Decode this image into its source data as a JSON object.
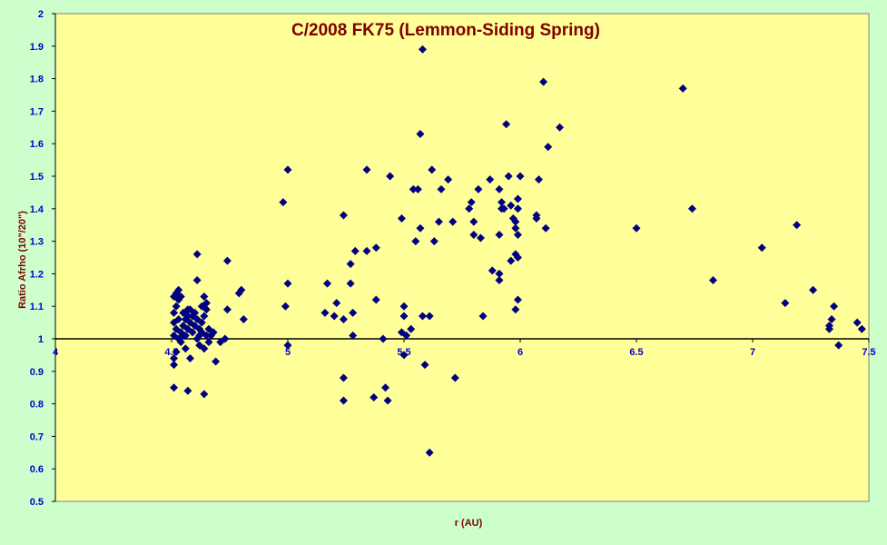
{
  "colors": {
    "chart_area_bg": "#ccffcc",
    "plot_area_bg": "#ffff99",
    "title_color": "#800000",
    "tick_color": "#0000cc",
    "marker_color": "#000080"
  },
  "chart_data": {
    "type": "scatter",
    "title": "C/2008 FK75 (Lemmon-Siding Spring)",
    "xlabel": "r (AU)",
    "ylabel": "Ratio Afrho  (10\"/20\")",
    "xlim": [
      4,
      7.5
    ],
    "ylim": [
      0.5,
      2
    ],
    "x_ticks": [
      "4",
      "4.5",
      "5",
      "5.5",
      "6",
      "6.5",
      "7",
      "7.5"
    ],
    "y_ticks": [
      "0.5",
      "0.6",
      "0.7",
      "0.8",
      "0.9",
      "1",
      "1.1",
      "1.2",
      "1.3",
      "1.4",
      "1.5",
      "1.6",
      "1.7",
      "1.8",
      "1.9",
      "2"
    ],
    "reference_line_y": 1,
    "x_axis_crosses_y": 1,
    "grid": false,
    "legend": "none",
    "marker": "diamond",
    "series": [
      {
        "points": [
          [
            4.51,
            0.85
          ],
          [
            4.57,
            0.84
          ],
          [
            4.64,
            0.83
          ],
          [
            4.51,
            0.92
          ],
          [
            4.51,
            0.94
          ],
          [
            4.52,
            0.96
          ],
          [
            4.56,
            0.97
          ],
          [
            4.58,
            0.94
          ],
          [
            4.62,
            0.98
          ],
          [
            4.64,
            0.97
          ],
          [
            4.69,
            0.93
          ],
          [
            4.71,
            0.99
          ],
          [
            4.73,
            1.0
          ],
          [
            4.51,
            1.01
          ],
          [
            4.52,
            1.03
          ],
          [
            4.51,
            1.05
          ],
          [
            4.53,
            1.06
          ],
          [
            4.51,
            1.08
          ],
          [
            4.52,
            1.1
          ],
          [
            4.53,
            1.12
          ],
          [
            4.51,
            1.13
          ],
          [
            4.52,
            1.14
          ],
          [
            4.53,
            1.15
          ],
          [
            4.54,
            1.13
          ],
          [
            4.53,
            1.0
          ],
          [
            4.54,
            1.02
          ],
          [
            4.55,
            1.04
          ],
          [
            4.56,
            1.06
          ],
          [
            4.55,
            1.08
          ],
          [
            4.56,
            1.01
          ],
          [
            4.57,
            1.03
          ],
          [
            4.58,
            1.05
          ],
          [
            4.57,
            1.07
          ],
          [
            4.58,
            1.09
          ],
          [
            4.59,
            1.02
          ],
          [
            4.6,
            1.04
          ],
          [
            4.61,
            1.06
          ],
          [
            4.6,
            1.08
          ],
          [
            4.61,
            1.0
          ],
          [
            4.62,
            1.03
          ],
          [
            4.63,
            1.05
          ],
          [
            4.64,
            1.07
          ],
          [
            4.63,
            1.02
          ],
          [
            4.65,
            1.01
          ],
          [
            4.66,
            1.03
          ],
          [
            4.67,
            1.01
          ],
          [
            4.68,
            1.02
          ],
          [
            4.65,
            1.09
          ],
          [
            4.65,
            1.11
          ],
          [
            4.64,
            1.13
          ],
          [
            4.63,
            1.1
          ],
          [
            4.61,
            1.18
          ],
          [
            4.61,
            1.26
          ],
          [
            4.74,
            1.24
          ],
          [
            4.74,
            1.09
          ],
          [
            4.79,
            1.14
          ],
          [
            4.8,
            1.15
          ],
          [
            4.81,
            1.06
          ],
          [
            4.54,
            0.99
          ],
          [
            4.55,
            1.01
          ],
          [
            4.57,
            1.09
          ],
          [
            4.59,
            1.07
          ],
          [
            4.62,
            1.01
          ],
          [
            4.66,
            0.99
          ],
          [
            4.98,
            1.42
          ],
          [
            5.0,
            1.52
          ],
          [
            4.99,
            1.1
          ],
          [
            5.0,
            1.17
          ],
          [
            5.0,
            0.98
          ],
          [
            5.16,
            1.08
          ],
          [
            5.17,
            1.17
          ],
          [
            5.2,
            1.07
          ],
          [
            5.21,
            1.11
          ],
          [
            5.24,
            1.38
          ],
          [
            5.24,
            1.06
          ],
          [
            5.27,
            1.23
          ],
          [
            5.27,
            1.17
          ],
          [
            5.28,
            1.08
          ],
          [
            5.28,
            1.01
          ],
          [
            5.29,
            1.27
          ],
          [
            5.24,
            0.88
          ],
          [
            5.24,
            0.81
          ],
          [
            5.34,
            1.52
          ],
          [
            5.34,
            1.27
          ],
          [
            5.38,
            1.28
          ],
          [
            5.38,
            1.12
          ],
          [
            5.37,
            0.82
          ],
          [
            5.41,
            1.0
          ],
          [
            5.42,
            0.85
          ],
          [
            5.43,
            0.81
          ],
          [
            5.44,
            1.5
          ],
          [
            5.49,
            1.37
          ],
          [
            5.5,
            1.1
          ],
          [
            5.5,
            1.07
          ],
          [
            5.49,
            1.02
          ],
          [
            5.51,
            1.01
          ],
          [
            5.5,
            0.95
          ],
          [
            5.53,
            1.03
          ],
          [
            5.54,
            1.46
          ],
          [
            5.55,
            1.3
          ],
          [
            5.56,
            1.46
          ],
          [
            5.57,
            1.34
          ],
          [
            5.57,
            1.63
          ],
          [
            5.58,
            1.89
          ],
          [
            5.58,
            1.07
          ],
          [
            5.59,
            0.92
          ],
          [
            5.61,
            1.07
          ],
          [
            5.61,
            0.65
          ],
          [
            5.62,
            1.52
          ],
          [
            5.63,
            1.3
          ],
          [
            5.65,
            1.36
          ],
          [
            5.66,
            1.46
          ],
          [
            5.69,
            1.49
          ],
          [
            5.71,
            1.36
          ],
          [
            5.72,
            0.88
          ],
          [
            5.78,
            1.4
          ],
          [
            5.79,
            1.42
          ],
          [
            5.8,
            1.36
          ],
          [
            5.8,
            1.32
          ],
          [
            5.82,
            1.46
          ],
          [
            5.83,
            1.31
          ],
          [
            5.84,
            1.07
          ],
          [
            5.87,
            1.49
          ],
          [
            5.88,
            1.21
          ],
          [
            5.91,
            1.46
          ],
          [
            5.91,
            1.32
          ],
          [
            5.92,
            1.4
          ],
          [
            5.92,
            1.42
          ],
          [
            5.93,
            1.4
          ],
          [
            5.91,
            1.2
          ],
          [
            5.91,
            1.18
          ],
          [
            5.94,
            1.66
          ],
          [
            5.95,
            1.5
          ],
          [
            5.96,
            1.24
          ],
          [
            5.96,
            1.41
          ],
          [
            5.97,
            1.37
          ],
          [
            5.98,
            1.36
          ],
          [
            5.98,
            1.34
          ],
          [
            5.98,
            1.26
          ],
          [
            5.99,
            1.43
          ],
          [
            5.99,
            1.4
          ],
          [
            5.99,
            1.32
          ],
          [
            6.0,
            1.5
          ],
          [
            5.99,
            1.25
          ],
          [
            5.99,
            1.12
          ],
          [
            5.98,
            1.09
          ],
          [
            6.07,
            1.37
          ],
          [
            6.07,
            1.38
          ],
          [
            6.08,
            1.49
          ],
          [
            6.1,
            1.79
          ],
          [
            6.11,
            1.34
          ],
          [
            6.12,
            1.59
          ],
          [
            6.17,
            1.65
          ],
          [
            6.5,
            1.34
          ],
          [
            6.7,
            1.77
          ],
          [
            6.74,
            1.4
          ],
          [
            6.83,
            1.18
          ],
          [
            7.04,
            1.28
          ],
          [
            7.14,
            1.11
          ],
          [
            7.19,
            1.35
          ],
          [
            7.26,
            1.15
          ],
          [
            7.33,
            1.03
          ],
          [
            7.33,
            1.04
          ],
          [
            7.34,
            1.06
          ],
          [
            7.35,
            1.1
          ],
          [
            7.37,
            0.98
          ],
          [
            7.45,
            1.05
          ],
          [
            7.47,
            1.03
          ]
        ]
      }
    ]
  }
}
